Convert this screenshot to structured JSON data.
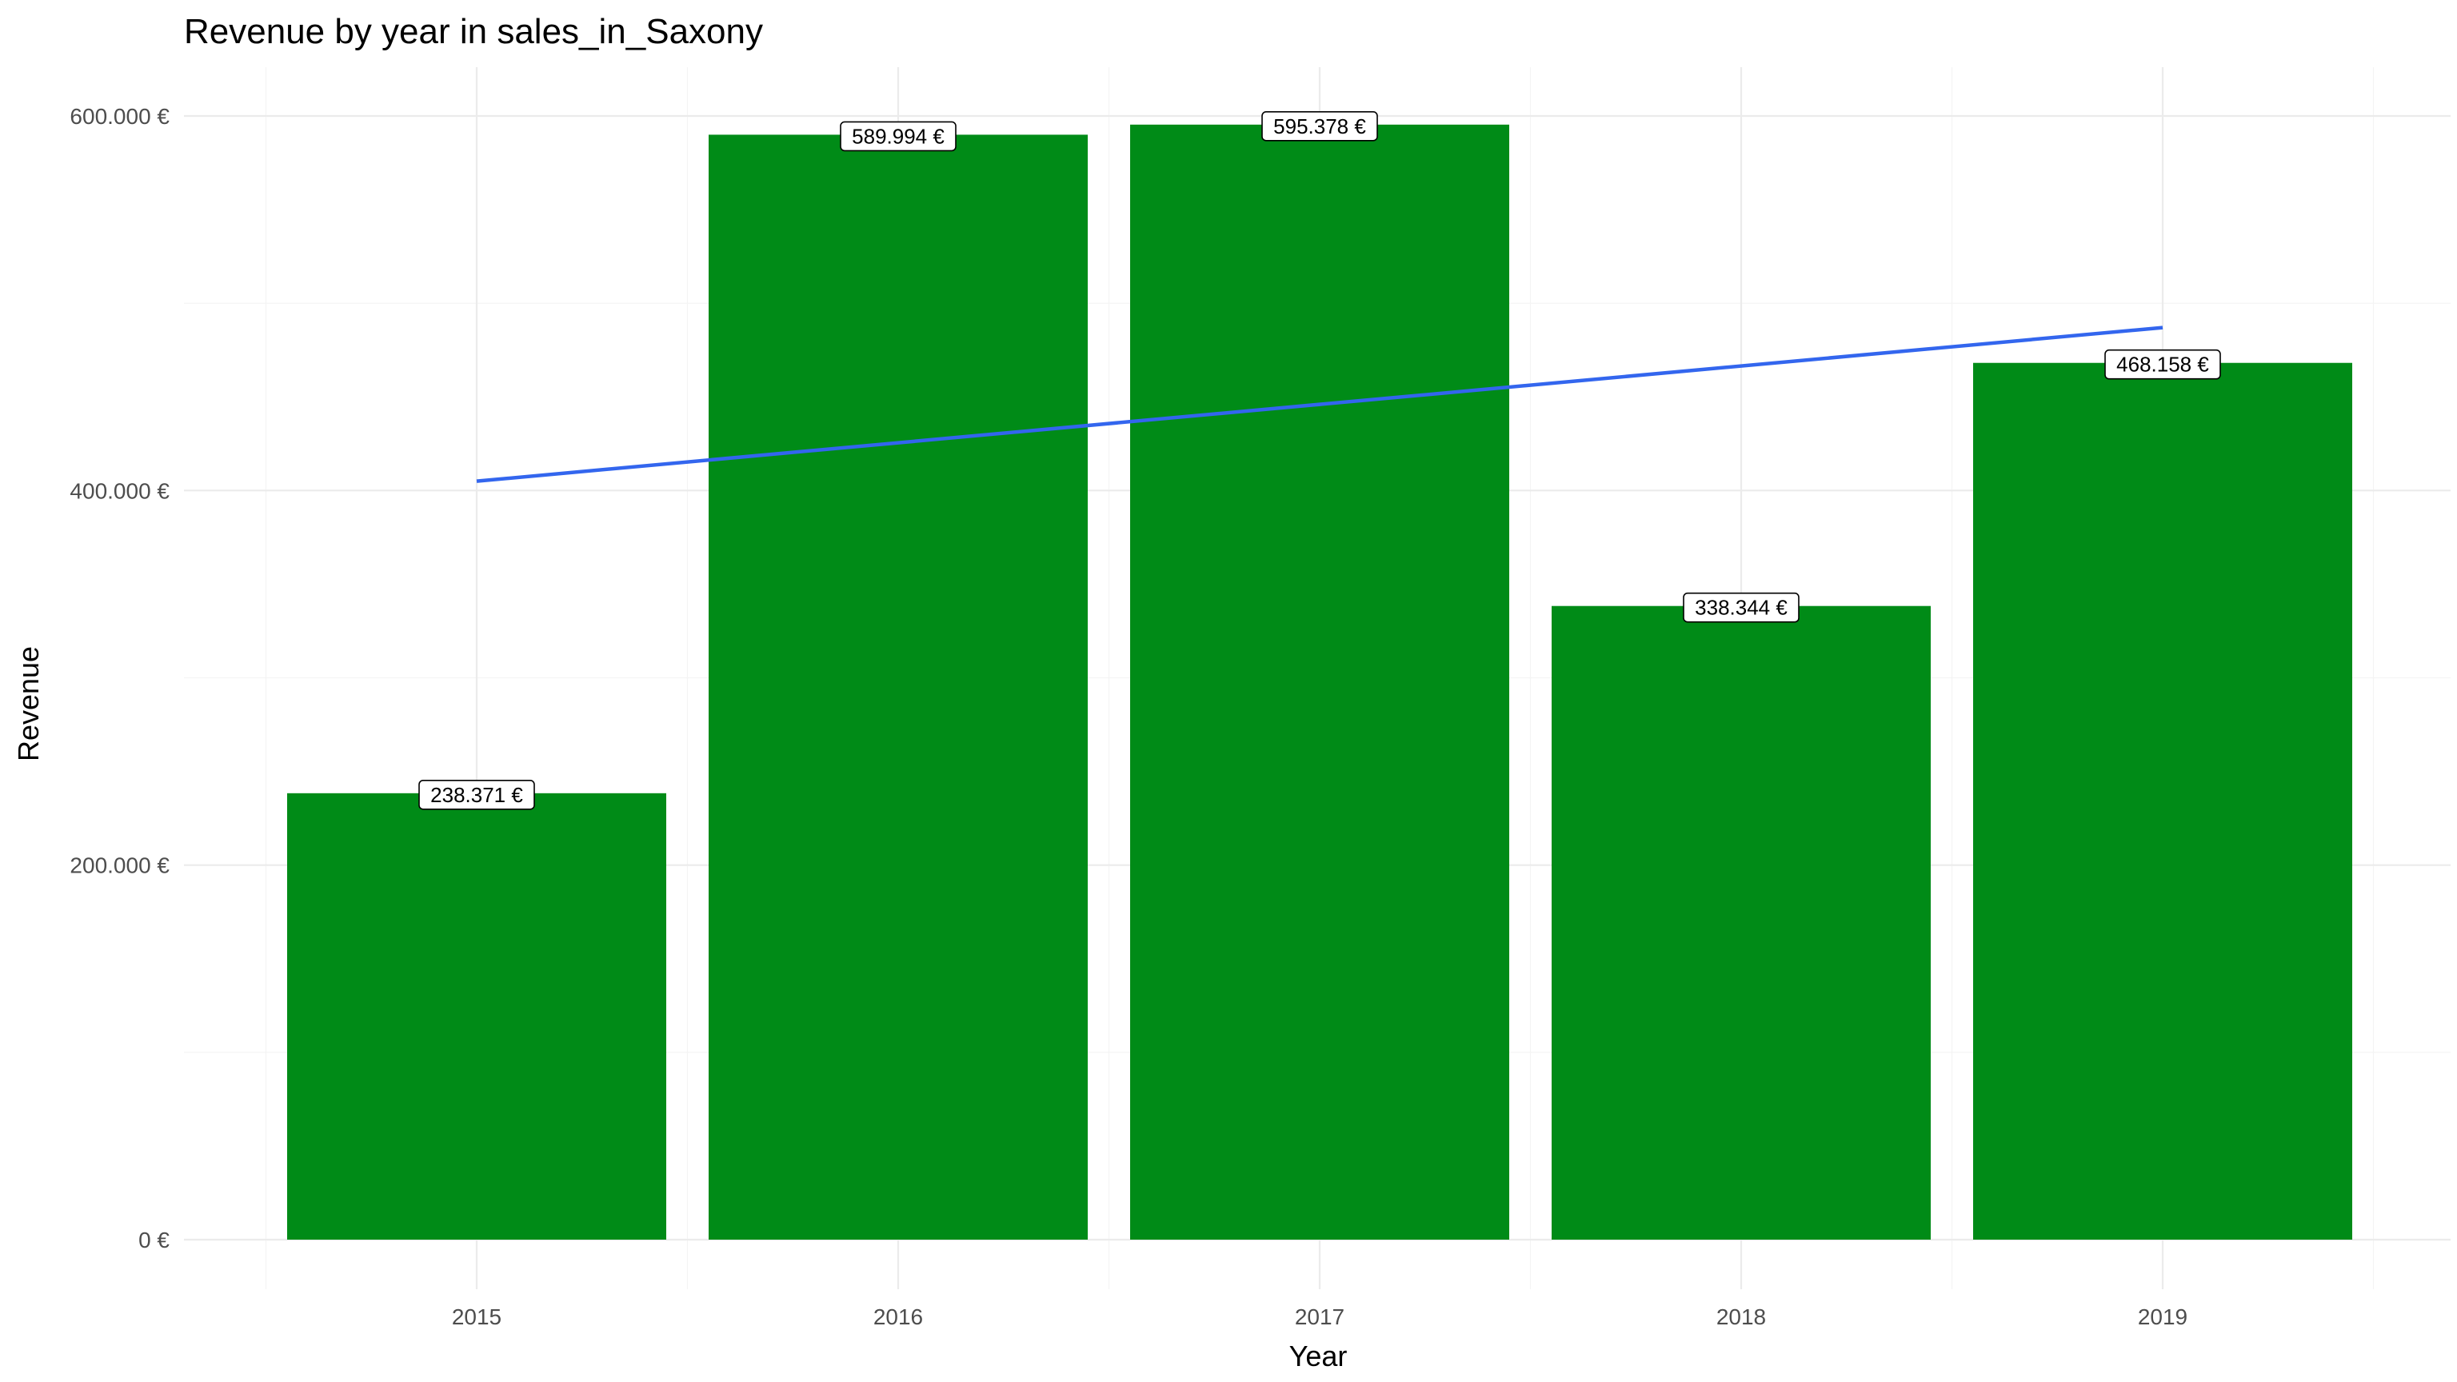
{
  "chart_data": {
    "type": "bar",
    "title": "Revenue by year in sales_in_Saxony",
    "xlabel": "Year",
    "ylabel": "Revenue",
    "categories": [
      "2015",
      "2016",
      "2017",
      "2018",
      "2019"
    ],
    "values": [
      238371,
      589994,
      595378,
      338344,
      468158
    ],
    "data_labels": [
      "238.371 €",
      "589.994 €",
      "595.378 €",
      "338.344 €",
      "468.158 €"
    ],
    "y_ticks": [
      {
        "value": 0,
        "label": "0 €"
      },
      {
        "value": 200000,
        "label": "200.000 €"
      },
      {
        "value": 400000,
        "label": "400.000 €"
      },
      {
        "value": 600000,
        "label": "600.000 €"
      }
    ],
    "ylim": [
      -30000,
      626000
    ],
    "trend_line": {
      "x": [
        "2015",
        "2019"
      ],
      "y": [
        405000,
        487000
      ]
    },
    "grid": true,
    "legend": "none",
    "colors": {
      "bar": "#008b17",
      "trend": "#3366ee"
    }
  }
}
